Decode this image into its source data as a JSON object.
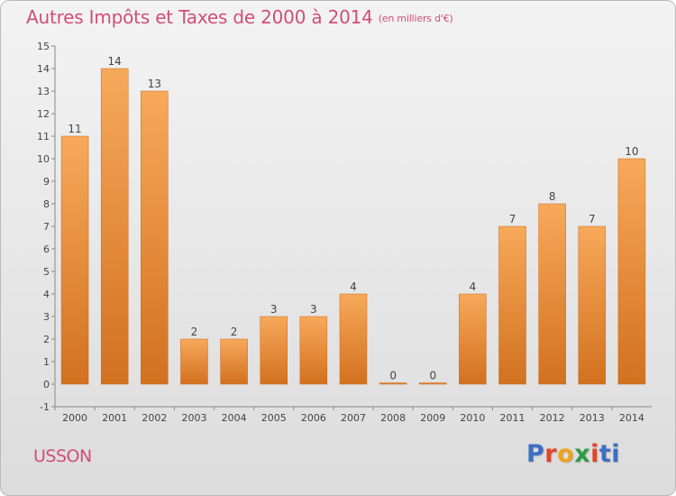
{
  "header": {
    "title": "Autres Impôts et Taxes de 2000 à 2014",
    "unit": "(en milliers d'€)"
  },
  "footer": {
    "place": "USSON",
    "logo": [
      "P",
      "r",
      "o",
      "x",
      "i",
      "ti"
    ]
  },
  "colors": {
    "title": "#cf4f78",
    "bar_top": "#f7a95a",
    "bar_bottom": "#d2711f"
  },
  "chart_data": {
    "type": "bar",
    "categories": [
      "2000",
      "2001",
      "2002",
      "2003",
      "2004",
      "2005",
      "2006",
      "2007",
      "2008",
      "2009",
      "2010",
      "2011",
      "2012",
      "2013",
      "2014"
    ],
    "values": [
      11,
      14,
      13,
      2,
      2,
      3,
      3,
      4,
      0,
      0,
      4,
      7,
      8,
      7,
      10
    ],
    "ylim": [
      -1,
      15
    ],
    "yticks": [
      "-1",
      "0",
      "1",
      "2",
      "3",
      "4",
      "5",
      "6",
      "7",
      "8",
      "9",
      "10",
      "11",
      "12",
      "13",
      "14",
      "15"
    ],
    "grid": false
  }
}
